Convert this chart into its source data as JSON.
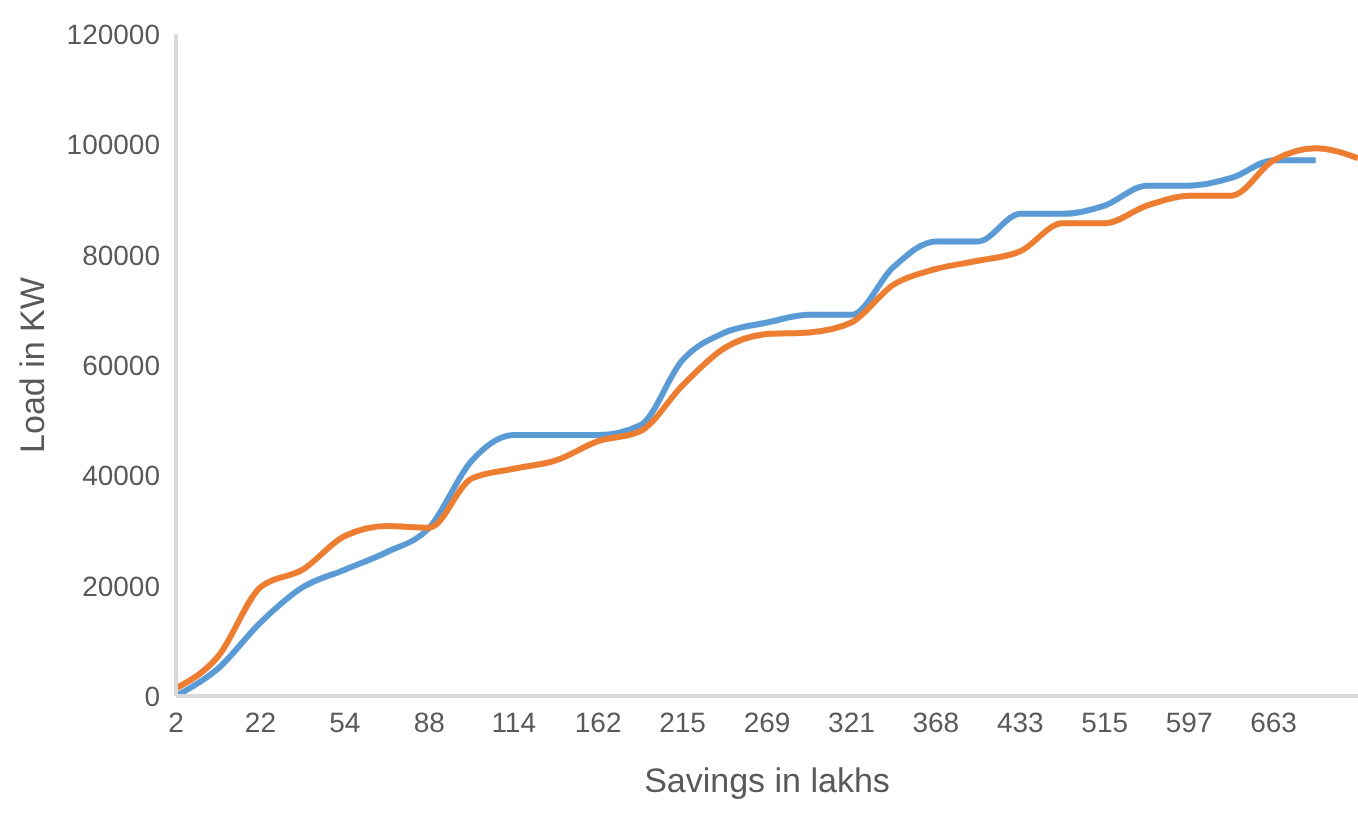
{
  "chart_data": {
    "type": "line",
    "xlabel": "Savings in lakhs",
    "ylabel": "Load in KW",
    "categories": [
      "2",
      null,
      "22",
      null,
      "54",
      null,
      "88",
      null,
      "114",
      null,
      "162",
      null,
      "215",
      null,
      "269",
      null,
      "321",
      null,
      "368",
      null,
      "433",
      null,
      "515",
      null,
      "597",
      null,
      "663",
      null,
      null
    ],
    "series": [
      {
        "color": "#5b9bd5",
        "values": [
          0,
          5000,
          13300,
          19700,
          22900,
          26100,
          30500,
          42600,
          47300,
          47300,
          47300,
          49100,
          60900,
          65900,
          67700,
          69100,
          69100,
          77800,
          82400,
          82400,
          87400,
          87400,
          88900,
          92500,
          92500,
          93900,
          97100,
          97100,
          null
        ]
      },
      {
        "color": "#ed7d31",
        "values": [
          1400,
          7200,
          19700,
          22900,
          29000,
          30800,
          30500,
          39400,
          41200,
          42700,
          46200,
          48000,
          56300,
          63100,
          65600,
          65900,
          67700,
          74600,
          77400,
          78900,
          80600,
          85700,
          85700,
          88900,
          90700,
          90700,
          97100,
          99300,
          97500
        ]
      }
    ],
    "ylim": [
      0,
      120000
    ],
    "yticks": [
      0,
      20000,
      40000,
      60000,
      80000,
      100000,
      120000
    ],
    "grid": false,
    "marker": "none",
    "line_style": "solid"
  }
}
